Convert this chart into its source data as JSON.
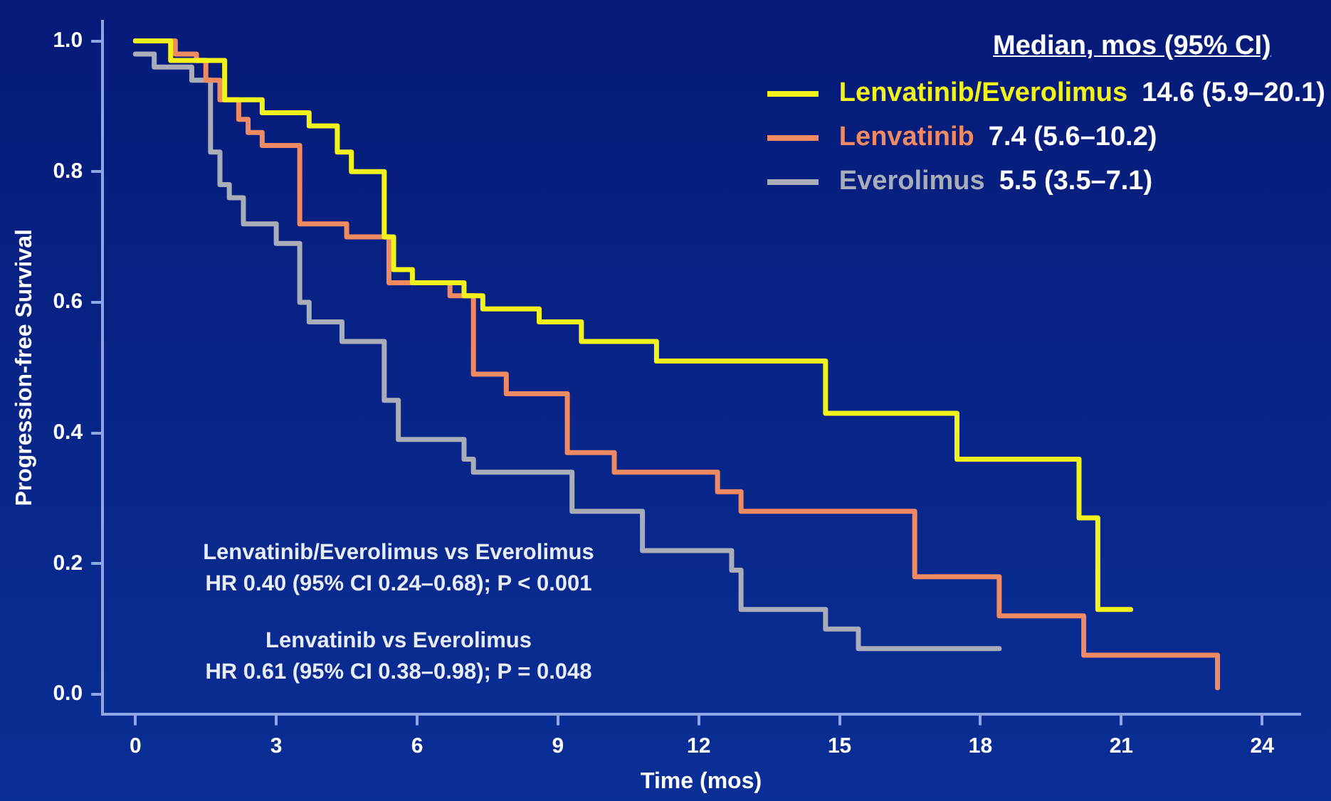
{
  "chart_data": {
    "type": "step",
    "xlabel": "Time (mos)",
    "ylabel": "Progression-free Survival",
    "legend_title": "Median, mos (95% CI)",
    "legend": "top right",
    "xlim": [
      -0.7,
      24.8
    ],
    "ylim": [
      -0.03,
      1.03
    ],
    "xticks": [
      0,
      3,
      6,
      9,
      12,
      15,
      18,
      21,
      24
    ],
    "yticks": [
      {
        "value": 0,
        "label": "0.0"
      },
      0.2,
      0.4,
      0.6,
      0.8,
      {
        "value": 1,
        "label": "1.0"
      }
    ],
    "series": [
      {
        "name": "Lenvatinib/Everolimus",
        "color": "#f2f21c",
        "x": [
          0,
          0.75,
          1.9,
          2.7,
          3.7,
          4.3,
          4.6,
          5.3,
          5.5,
          5.9,
          7.0,
          7.4,
          8.6,
          9.5,
          11.1,
          14.7,
          17.5,
          20.1,
          20.5,
          21.2
        ],
        "values": [
          1.0,
          0.97,
          0.91,
          0.89,
          0.87,
          0.83,
          0.8,
          0.7,
          0.65,
          0.63,
          0.61,
          0.59,
          0.57,
          0.54,
          0.51,
          0.43,
          0.36,
          0.27,
          0.13,
          0.13
        ]
      },
      {
        "name": "Lenvatinib",
        "color": "#f08a62",
        "x": [
          0,
          0.85,
          1.3,
          1.5,
          1.8,
          2.2,
          2.4,
          2.7,
          3.5,
          4.5,
          5.4,
          6.7,
          7.2,
          7.9,
          9.2,
          10.2,
          12.4,
          12.9,
          16.6,
          18.4,
          20.2,
          23.0,
          23.05
        ],
        "values": [
          1.0,
          0.98,
          0.97,
          0.94,
          0.91,
          0.88,
          0.86,
          0.84,
          0.72,
          0.7,
          0.63,
          0.61,
          0.49,
          0.46,
          0.37,
          0.34,
          0.31,
          0.28,
          0.18,
          0.12,
          0.06,
          0.06,
          0.01
        ]
      },
      {
        "name": "Everolimus",
        "color": "#a9adb9",
        "x": [
          0,
          0.4,
          1.2,
          1.6,
          1.8,
          2.0,
          2.3,
          3.0,
          3.5,
          3.7,
          4.4,
          5.3,
          5.6,
          7.0,
          7.2,
          9.3,
          10.8,
          12.7,
          12.9,
          14.7,
          15.4,
          18.4
        ],
        "values": [
          0.98,
          0.96,
          0.94,
          0.83,
          0.78,
          0.76,
          0.72,
          0.69,
          0.6,
          0.57,
          0.54,
          0.45,
          0.39,
          0.36,
          0.34,
          0.28,
          0.22,
          0.19,
          0.13,
          0.1,
          0.07,
          0.07
        ]
      }
    ],
    "annotations": [
      "14.6 (5.9–20.1)",
      "7.4 (5.6–10.2)",
      "5.5 (3.5–7.1)",
      "Lenvatinib/Everolimus vs Everolimus",
      "HR 0.40 (95% CI 0.24–0.68); P < 0.001",
      "Lenvatinib vs Everolimus",
      "HR 0.61 (95% CI 0.38–0.98); P = 0.048"
    ]
  }
}
